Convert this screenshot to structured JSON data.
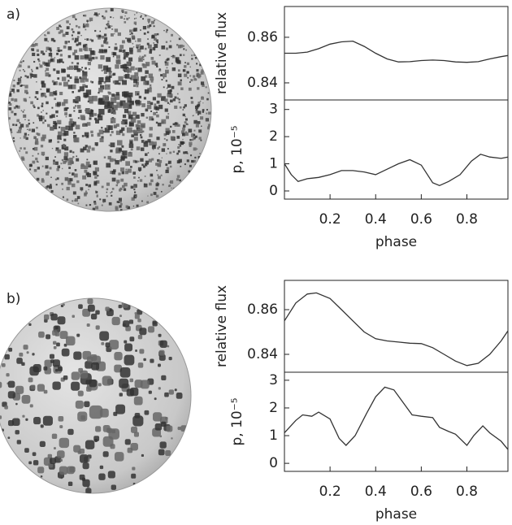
{
  "panel_labels": [
    "a)",
    "b)"
  ],
  "chart_data": [
    {
      "type": "line",
      "y_label": "relative flux",
      "color": "#333333",
      "x": [
        0,
        0.05,
        0.1,
        0.15,
        0.2,
        0.25,
        0.3,
        0.35,
        0.4,
        0.45,
        0.5,
        0.55,
        0.6,
        0.65,
        0.7,
        0.75,
        0.8,
        0.85,
        0.9,
        0.95,
        0.98
      ],
      "values": [
        0.853,
        0.853,
        0.8535,
        0.855,
        0.857,
        0.858,
        0.8583,
        0.856,
        0.853,
        0.8505,
        0.8492,
        0.8493,
        0.8498,
        0.85,
        0.8498,
        0.8492,
        0.849,
        0.8493,
        0.8505,
        0.8515,
        0.852
      ],
      "xlim": [
        0,
        0.98
      ],
      "ylim": [
        0.8325,
        0.8735
      ],
      "yticks": [
        0.84,
        0.86
      ]
    },
    {
      "type": "line",
      "y_label": "p, 10⁻⁵",
      "x_label": "phase",
      "color": "#333333",
      "x": [
        0,
        0.03,
        0.06,
        0.1,
        0.15,
        0.2,
        0.25,
        0.3,
        0.35,
        0.4,
        0.45,
        0.5,
        0.55,
        0.6,
        0.65,
        0.68,
        0.72,
        0.77,
        0.82,
        0.86,
        0.9,
        0.95,
        0.98
      ],
      "values": [
        1.0,
        0.6,
        0.35,
        0.45,
        0.5,
        0.6,
        0.75,
        0.75,
        0.7,
        0.6,
        0.8,
        1.0,
        1.15,
        0.95,
        0.3,
        0.2,
        0.35,
        0.6,
        1.1,
        1.35,
        1.25,
        1.2,
        1.25
      ],
      "xlim": [
        0,
        0.98
      ],
      "ylim": [
        -0.3,
        3.35
      ],
      "yticks": [
        0,
        1,
        2,
        3
      ],
      "xticks": [
        0.2,
        0.4,
        0.6,
        0.8
      ]
    },
    {
      "type": "line",
      "y_label": "relative flux",
      "color": "#333333",
      "x": [
        0,
        0.05,
        0.1,
        0.14,
        0.2,
        0.25,
        0.3,
        0.35,
        0.4,
        0.45,
        0.5,
        0.55,
        0.6,
        0.65,
        0.7,
        0.75,
        0.8,
        0.85,
        0.9,
        0.95,
        0.98
      ],
      "values": [
        0.855,
        0.863,
        0.867,
        0.8675,
        0.865,
        0.86,
        0.855,
        0.85,
        0.847,
        0.846,
        0.8455,
        0.845,
        0.8448,
        0.843,
        0.84,
        0.837,
        0.835,
        0.836,
        0.84,
        0.846,
        0.8505
      ],
      "xlim": [
        0,
        0.98
      ],
      "ylim": [
        0.832,
        0.8731
      ],
      "yticks": [
        0.84,
        0.86
      ]
    },
    {
      "type": "line",
      "y_label": "p, 10⁻⁵",
      "x_label": "phase",
      "color": "#333333",
      "x": [
        0,
        0.05,
        0.08,
        0.12,
        0.15,
        0.2,
        0.24,
        0.27,
        0.31,
        0.36,
        0.4,
        0.44,
        0.48,
        0.52,
        0.56,
        0.6,
        0.65,
        0.68,
        0.72,
        0.75,
        0.8,
        0.83,
        0.87,
        0.9,
        0.95,
        0.98
      ],
      "values": [
        1.1,
        1.55,
        1.75,
        1.7,
        1.85,
        1.6,
        0.9,
        0.65,
        1.0,
        1.8,
        2.4,
        2.75,
        2.65,
        2.2,
        1.75,
        1.7,
        1.65,
        1.3,
        1.15,
        1.05,
        0.65,
        1.0,
        1.35,
        1.1,
        0.8,
        0.5
      ],
      "xlim": [
        0,
        0.98
      ],
      "ylim": [
        -0.29,
        3.29
      ],
      "yticks": [
        0,
        1,
        2,
        3
      ],
      "xticks": [
        0.2,
        0.4,
        0.6,
        0.8
      ]
    }
  ]
}
